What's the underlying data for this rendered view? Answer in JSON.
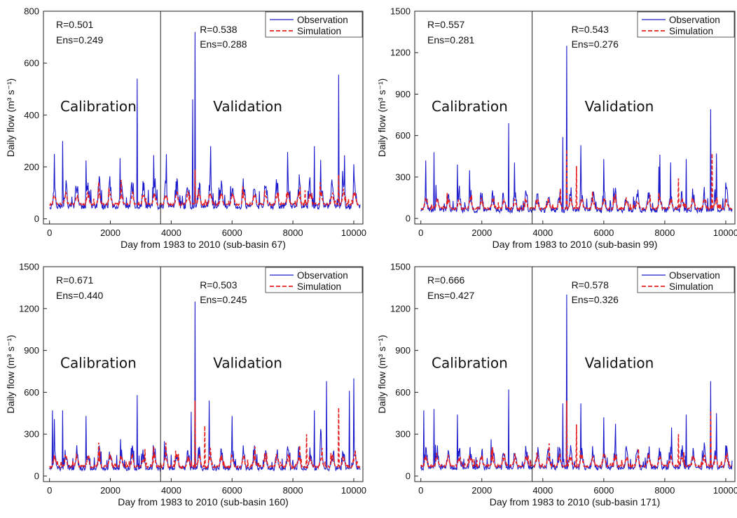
{
  "chart_data": [
    {
      "type": "line",
      "subbasin": "67",
      "xlabel": "Day from 1983 to 2010 (sub-basin 67)",
      "ylabel": "Daily flow (m³ s⁻¹)",
      "xlim": [
        -200,
        10300
      ],
      "ylim": [
        -20,
        800
      ],
      "xticks": [
        0,
        2000,
        4000,
        6000,
        8000,
        10000
      ],
      "xtick_labels": [
        "0",
        "2000",
        "4000",
        "6000",
        "8000",
        "10000"
      ],
      "yticks": [
        0,
        200,
        400,
        600,
        800
      ],
      "ytick_labels": [
        "0",
        "200",
        "400",
        "600",
        "800"
      ],
      "split_day": 3650,
      "phase_labels": [
        "Calibration",
        "Validation"
      ],
      "legend_position": "top-right",
      "stats": {
        "calibration": {
          "R": "R=0.501",
          "Ens": "Ens=0.249"
        },
        "validation": {
          "R": "R=0.538",
          "Ens": "Ens=0.288"
        }
      },
      "series": [
        {
          "name": "Observation",
          "color": "#1a1acc",
          "style": "solid",
          "base": 45,
          "amp": 70,
          "noise": 55,
          "peaks": [
            [
              160,
              250
            ],
            [
              430,
              300
            ],
            [
              1200,
              225
            ],
            [
              2880,
              540
            ],
            [
              3400,
              130
            ],
            [
              4700,
              460
            ],
            [
              4780,
              720
            ],
            [
              5300,
              280
            ],
            [
              5800,
              240
            ],
            [
              7000,
              250
            ],
            [
              7400,
              230
            ],
            [
              8700,
              280
            ],
            [
              9500,
              555
            ],
            [
              9700,
              245
            ],
            [
              10000,
              210
            ]
          ]
        },
        {
          "name": "Simulation",
          "color": "#e61e1e",
          "style": "dashed",
          "base": 55,
          "amp": 35,
          "noise": 20,
          "peaks": [
            [
              4780,
              190
            ],
            [
              5000,
              160
            ],
            [
              9500,
              170
            ],
            [
              8400,
              110
            ]
          ]
        }
      ]
    },
    {
      "type": "line",
      "subbasin": "99",
      "xlabel": "Day from 1983 to 2010 (sub-basin 99)",
      "ylabel": "Daily flow (m³ s⁻¹)",
      "xlim": [
        -200,
        10300
      ],
      "ylim": [
        -40,
        1500
      ],
      "xticks": [
        0,
        2000,
        4000,
        6000,
        8000,
        10000
      ],
      "xtick_labels": [
        "0",
        "2000",
        "4000",
        "6000",
        "8000",
        "10000"
      ],
      "yticks": [
        0,
        300,
        600,
        900,
        1200,
        1500
      ],
      "ytick_labels": [
        "0",
        "300",
        "600",
        "900",
        "1200",
        "1500"
      ],
      "split_day": 3650,
      "phase_labels": [
        "Calibration",
        "Validation"
      ],
      "legend_position": "top-right",
      "stats": {
        "calibration": {
          "R": "R=0.557",
          "Ens": "Ens=0.281"
        },
        "validation": {
          "R": "R=0.543",
          "Ens": "Ens=0.276"
        }
      },
      "series": [
        {
          "name": "Observation",
          "color": "#1a1acc",
          "style": "solid",
          "base": 55,
          "amp": 100,
          "noise": 90,
          "peaks": [
            [
              160,
              420
            ],
            [
              430,
              480
            ],
            [
              1200,
              390
            ],
            [
              2880,
              690
            ],
            [
              4650,
              590
            ],
            [
              4780,
              1250
            ],
            [
              5250,
              530
            ],
            [
              6000,
              430
            ],
            [
              7400,
              480
            ],
            [
              8700,
              430
            ],
            [
              9500,
              790
            ],
            [
              9700,
              470
            ],
            [
              10000,
              260
            ]
          ]
        },
        {
          "name": "Simulation",
          "color": "#e61e1e",
          "style": "dashed",
          "base": 70,
          "amp": 55,
          "noise": 35,
          "peaks": [
            [
              4780,
              500
            ],
            [
              5100,
              380
            ],
            [
              9550,
              470
            ],
            [
              8450,
              290
            ]
          ]
        }
      ]
    },
    {
      "type": "line",
      "subbasin": "160",
      "xlabel": "Day from 1983 to 2010 (sub-basin 160)",
      "ylabel": "Daily flow (m³ s⁻¹)",
      "xlim": [
        -200,
        10300
      ],
      "ylim": [
        -40,
        1500
      ],
      "xticks": [
        0,
        2000,
        4000,
        6000,
        8000,
        10000
      ],
      "xtick_labels": [
        "0",
        "2000",
        "4000",
        "6000",
        "8000",
        "10000"
      ],
      "yticks": [
        0,
        300,
        600,
        900,
        1200,
        1500
      ],
      "ytick_labels": [
        "0",
        "300",
        "600",
        "900",
        "1200",
        "1500"
      ],
      "split_day": 3650,
      "phase_labels": [
        "Calibration",
        "Validation"
      ],
      "legend_position": "top-right",
      "stats": {
        "calibration": {
          "R": "R=0.671",
          "Ens": "Ens=0.440"
        },
        "validation": {
          "R": "R=0.503",
          "Ens": "Ens=0.245"
        }
      },
      "series": [
        {
          "name": "Observation",
          "color": "#1a1acc",
          "style": "solid",
          "base": 50,
          "amp": 100,
          "noise": 80,
          "peaks": [
            [
              100,
              470
            ],
            [
              430,
              470
            ],
            [
              1200,
              430
            ],
            [
              2880,
              580
            ],
            [
              4650,
              460
            ],
            [
              4780,
              1250
            ],
            [
              5250,
              540
            ],
            [
              6000,
              430
            ],
            [
              7400,
              460
            ],
            [
              8700,
              470
            ],
            [
              9100,
              680
            ],
            [
              9850,
              610
            ],
            [
              10000,
              700
            ]
          ]
        },
        {
          "name": "Simulation",
          "color": "#e61e1e",
          "style": "dashed",
          "base": 65,
          "amp": 60,
          "noise": 45,
          "peaks": [
            [
              4780,
              540
            ],
            [
              9500,
              490
            ],
            [
              5100,
              360
            ],
            [
              8450,
              300
            ]
          ]
        }
      ]
    },
    {
      "type": "line",
      "subbasin": "171",
      "xlabel": "Day from 1983 to 2010 (sub-basin 171)",
      "ylabel": "Daily flow (m³ s⁻¹)",
      "xlim": [
        -200,
        10300
      ],
      "ylim": [
        -40,
        1500
      ],
      "xticks": [
        0,
        2000,
        4000,
        6000,
        8000,
        10000
      ],
      "xtick_labels": [
        "0",
        "2000",
        "4000",
        "6000",
        "8000",
        "10000"
      ],
      "yticks": [
        0,
        300,
        600,
        900,
        1200,
        1500
      ],
      "ytick_labels": [
        "0",
        "300",
        "600",
        "900",
        "1200",
        "1500"
      ],
      "split_day": 3650,
      "phase_labels": [
        "Calibration",
        "Validation"
      ],
      "legend_position": "top-right",
      "stats": {
        "calibration": {
          "R": "R=0.666",
          "Ens": "Ens=0.427"
        },
        "validation": {
          "R": "R=0.578",
          "Ens": "Ens=0.326"
        }
      },
      "series": [
        {
          "name": "Observation",
          "color": "#1a1acc",
          "style": "solid",
          "base": 55,
          "amp": 100,
          "noise": 80,
          "peaks": [
            [
              100,
              470
            ],
            [
              430,
              480
            ],
            [
              1200,
              440
            ],
            [
              2880,
              620
            ],
            [
              4650,
              520
            ],
            [
              4780,
              1300
            ],
            [
              5250,
              520
            ],
            [
              6000,
              420
            ],
            [
              7400,
              440
            ],
            [
              8700,
              440
            ],
            [
              9500,
              680
            ],
            [
              9700,
              450
            ],
            [
              10000,
              220
            ]
          ]
        },
        {
          "name": "Simulation",
          "color": "#e61e1e",
          "style": "dashed",
          "base": 70,
          "amp": 60,
          "noise": 40,
          "peaks": [
            [
              4780,
              540
            ],
            [
              5100,
              370
            ],
            [
              9500,
              460
            ],
            [
              8450,
              300
            ]
          ]
        }
      ]
    }
  ]
}
